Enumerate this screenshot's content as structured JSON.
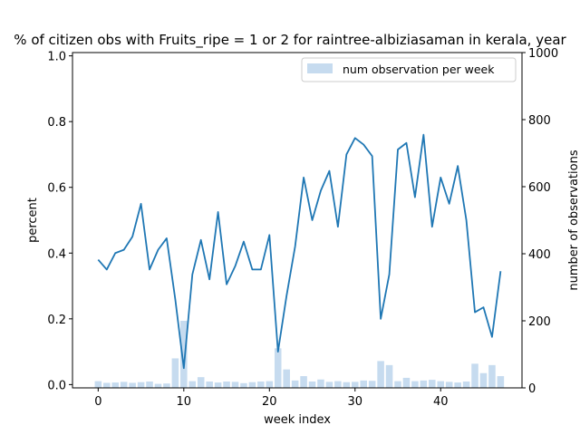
{
  "chart_data": {
    "type": "line",
    "title": "% of citizen obs with Fruits_ripe = 1 or 2 for raintree-albiziasaman in kerala, year",
    "xlabel": "week index",
    "ylabel": "percent",
    "y2label": "number of observations",
    "xlim": [
      -3,
      49.5
    ],
    "ylim": [
      -0.01,
      1.01
    ],
    "y2lim": [
      0,
      1000
    ],
    "xticks": [
      0,
      10,
      20,
      30,
      40
    ],
    "yticks": [
      0.0,
      0.2,
      0.4,
      0.6,
      0.8,
      1.0
    ],
    "y2ticks": [
      0,
      200,
      400,
      600,
      800,
      1000
    ],
    "line_color": "#1f77b4",
    "bar_color": "#c6dbef",
    "legend_position": "upper right",
    "legend": [
      "num observation per week"
    ],
    "x": [
      0,
      1,
      2,
      3,
      4,
      5,
      6,
      7,
      8,
      9,
      10,
      11,
      12,
      13,
      14,
      15,
      16,
      17,
      18,
      19,
      20,
      21,
      22,
      23,
      24,
      25,
      26,
      27,
      28,
      29,
      30,
      31,
      32,
      33,
      34,
      35,
      36,
      37,
      38,
      39,
      40,
      41,
      42,
      43,
      44,
      45,
      46,
      47
    ],
    "series": [
      {
        "type": "line",
        "axis": "left",
        "values": [
          0.38,
          0.35,
          0.4,
          0.41,
          0.45,
          0.55,
          0.35,
          0.41,
          0.445,
          0.26,
          0.05,
          0.335,
          0.44,
          0.32,
          0.525,
          0.305,
          0.36,
          0.435,
          0.35,
          0.35,
          0.455,
          0.1,
          0.27,
          0.42,
          0.63,
          0.5,
          0.59,
          0.65,
          0.48,
          0.7,
          0.75,
          0.73,
          0.695,
          0.2,
          0.335,
          0.715,
          0.735,
          0.57,
          0.76,
          0.48,
          0.63,
          0.55,
          0.665,
          0.5,
          0.22,
          0.235,
          0.145,
          0.345
        ]
      },
      {
        "name": "num observation per week",
        "type": "bar",
        "axis": "right",
        "values": [
          20,
          15,
          16,
          18,
          15,
          17,
          19,
          12,
          13,
          88,
          200,
          20,
          32,
          19,
          16,
          19,
          18,
          14,
          17,
          19,
          20,
          118,
          55,
          22,
          35,
          19,
          25,
          18,
          20,
          17,
          18,
          22,
          21,
          80,
          68,
          20,
          30,
          20,
          22,
          24,
          20,
          18,
          16,
          19,
          72,
          44,
          68,
          35
        ]
      }
    ]
  }
}
